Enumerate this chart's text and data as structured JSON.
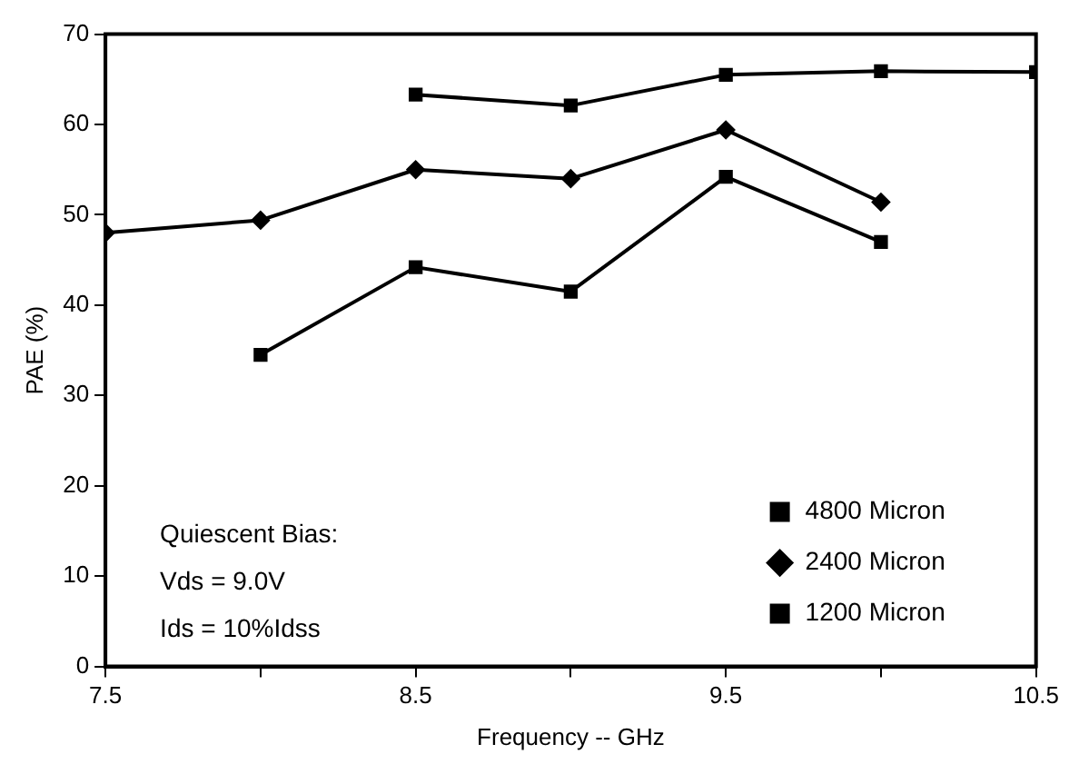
{
  "chart_data": {
    "type": "line",
    "xlabel": "Frequency -- GHz",
    "ylabel": "PAE (%)",
    "xlim": [
      7.5,
      10.5
    ],
    "xticks": [
      7.5,
      {
        "value": 8,
        "label": null
      },
      8.5,
      {
        "value": 9,
        "label": null
      },
      9.5,
      {
        "value": 10,
        "label": null
      },
      10.5
    ],
    "ylim": [
      0,
      70
    ],
    "yticks": [
      0,
      10,
      20,
      30,
      40,
      50,
      60,
      70
    ],
    "grid": false,
    "legend": "bottom right",
    "line_style": "solid",
    "series": [
      {
        "name": "4800 Micron",
        "color": "#000000",
        "marker": "square",
        "x": [
          8,
          8.5,
          9,
          9.5,
          10
        ],
        "values": [
          34.5,
          44.2,
          41.5,
          54.2,
          47.0
        ]
      },
      {
        "name": "2400 Micron",
        "color": "#000000",
        "marker": "diamond",
        "x": [
          7.5,
          8,
          8.5,
          9,
          9.5,
          10
        ],
        "values": [
          48,
          49.4,
          55.0,
          54.0,
          59.4,
          51.4
        ]
      },
      {
        "name": "1200 Micron",
        "color": "#000000",
        "marker": "square",
        "x": [
          8.5,
          9,
          9.5,
          10,
          10.5
        ],
        "values": [
          63.3,
          62.1,
          65.5,
          65.9,
          65.8
        ]
      }
    ],
    "annotations": [
      "Quiescent Bias:",
      "Vds = 9.0V",
      "Ids = 10%Idss"
    ]
  }
}
